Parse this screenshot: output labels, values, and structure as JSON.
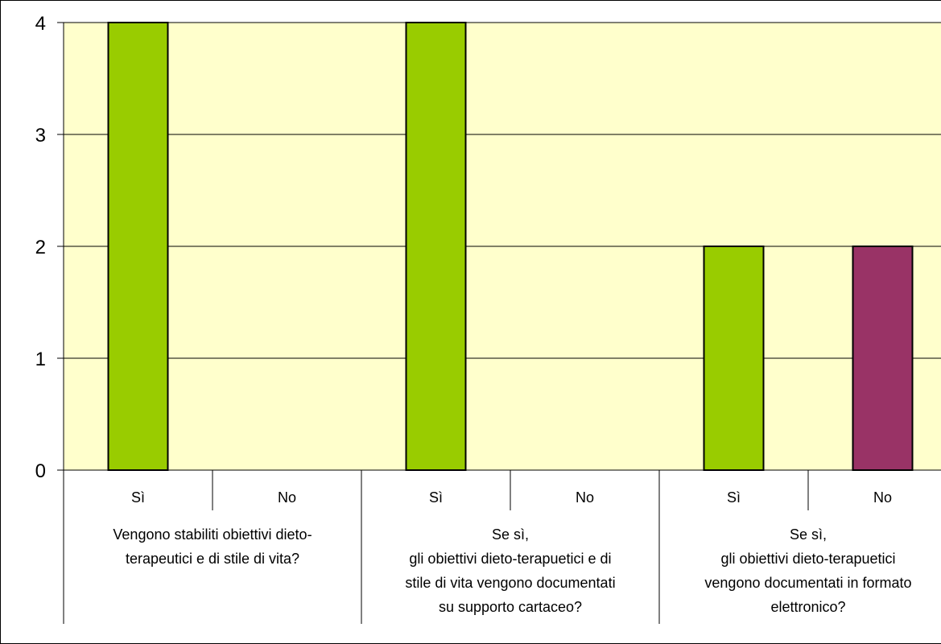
{
  "chart_data": {
    "type": "bar",
    "title": "",
    "xlabel": "",
    "ylabel": "",
    "ylim": [
      0,
      4
    ],
    "yticks": [
      "0",
      "1",
      "2",
      "3",
      "4"
    ],
    "grid": true,
    "plot_background": "#FFFFCC",
    "groups": [
      {
        "label_lines": [
          "Vengono stabiliti obiettivi dieto-",
          "terapeutici e di stile di vita?"
        ],
        "bars": [
          {
            "category": "Sì",
            "value": 4,
            "color": "#99CC00"
          },
          {
            "category": "No",
            "value": 0,
            "color": "#993366"
          }
        ]
      },
      {
        "label_lines": [
          "Se sì,",
          "gli obiettivi dieto-terapuetici e di",
          "stile di vita vengono documentati",
          "su supporto cartaceo?"
        ],
        "bars": [
          {
            "category": "Sì",
            "value": 4,
            "color": "#99CC00"
          },
          {
            "category": "No",
            "value": 0,
            "color": "#993366"
          }
        ]
      },
      {
        "label_lines": [
          "Se sì,",
          "gli obiettivi dieto-terapuetici",
          "vengono documentati in formato",
          "elettronico?"
        ],
        "bars": [
          {
            "category": "Sì",
            "value": 2,
            "color": "#99CC00"
          },
          {
            "category": "No",
            "value": 2,
            "color": "#993366"
          }
        ]
      }
    ]
  }
}
